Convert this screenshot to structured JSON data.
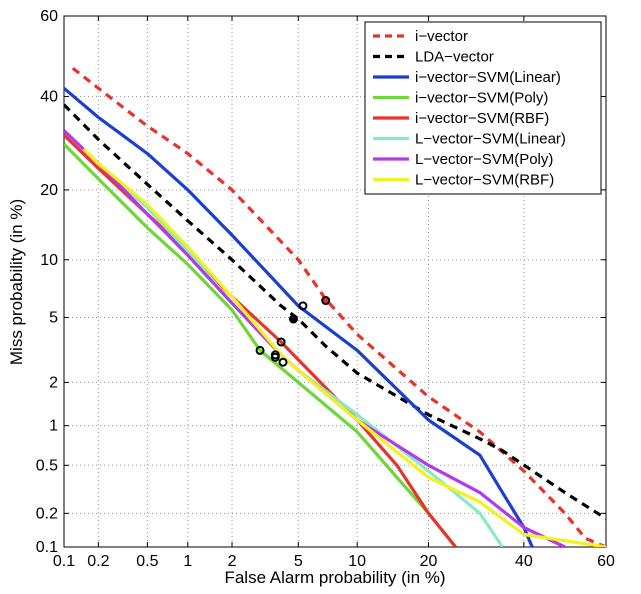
{
  "chart_data": {
    "type": "line",
    "title": "",
    "xlabel": "False Alarm probability (in %)",
    "ylabel": "Miss probability (in %)",
    "x_scale": "probit",
    "y_scale": "probit",
    "xlim": [
      0.1,
      60
    ],
    "ylim": [
      0.1,
      60
    ],
    "grid": true,
    "legend_position": "top-right",
    "x_ticks": [
      {
        "value": 0.1,
        "label": "0.1"
      },
      {
        "value": 0.2,
        "label": "0.2"
      },
      {
        "value": 0.5,
        "label": "0.5"
      },
      {
        "value": 1,
        "label": "1"
      },
      {
        "value": 2,
        "label": "2"
      },
      {
        "value": 5,
        "label": "5"
      },
      {
        "value": 10,
        "label": "10"
      },
      {
        "value": 20,
        "label": "20"
      },
      {
        "value": 40,
        "label": "40"
      },
      {
        "value": 60,
        "label": "60"
      }
    ],
    "y_ticks": [
      {
        "value": 0.1,
        "label": "0.1"
      },
      {
        "value": 0.2,
        "label": "0.2"
      },
      {
        "value": 0.5,
        "label": "0.5"
      },
      {
        "value": 1,
        "label": "1"
      },
      {
        "value": 2,
        "label": "2"
      },
      {
        "value": 5,
        "label": "5"
      },
      {
        "value": 10,
        "label": "10"
      },
      {
        "value": 20,
        "label": "20"
      },
      {
        "value": 40,
        "label": "40"
      },
      {
        "value": 60,
        "label": "60"
      }
    ],
    "series": [
      {
        "name": "i−vector",
        "color": "#e8332a",
        "dash": true,
        "points": [
          [
            0.12,
            47
          ],
          [
            0.2,
            42
          ],
          [
            0.5,
            33
          ],
          [
            1,
            27
          ],
          [
            2,
            20
          ],
          [
            5,
            10
          ],
          [
            7,
            6.3
          ],
          [
            10,
            4
          ],
          [
            20,
            1.6
          ],
          [
            30,
            0.9
          ],
          [
            40,
            0.45
          ],
          [
            50,
            0.2
          ],
          [
            55,
            0.12
          ],
          [
            60,
            0.1
          ]
        ],
        "min_dcf": [
          7.0,
          6.2
        ]
      },
      {
        "name": "LDA−vector",
        "color": "#000000",
        "dash": true,
        "points": [
          [
            0.1,
            38
          ],
          [
            0.2,
            30
          ],
          [
            0.5,
            21
          ],
          [
            1,
            15
          ],
          [
            2,
            10
          ],
          [
            4,
            5.8
          ],
          [
            5,
            4.9
          ],
          [
            7,
            3.4
          ],
          [
            10,
            2.3
          ],
          [
            20,
            1.2
          ],
          [
            30,
            0.8
          ],
          [
            35,
            0.65
          ],
          [
            50,
            0.3
          ],
          [
            60,
            0.18
          ]
        ],
        "min_dcf": [
          4.7,
          4.9
        ]
      },
      {
        "name": "i−vector−SVM(Linear)",
        "color": "#1a3fd1",
        "dash": false,
        "points": [
          [
            0.1,
            42
          ],
          [
            0.2,
            35
          ],
          [
            0.5,
            27
          ],
          [
            1,
            20
          ],
          [
            2,
            13
          ],
          [
            5,
            5.8
          ],
          [
            10,
            3.2
          ],
          [
            20,
            1.1
          ],
          [
            30,
            0.6
          ],
          [
            35,
            0.3
          ],
          [
            40,
            0.15
          ],
          [
            42,
            0.1
          ]
        ],
        "min_dcf": [
          5.3,
          5.8
        ]
      },
      {
        "name": "i−vector−SVM(Poly)",
        "color": "#6fd63a",
        "dash": false,
        "points": [
          [
            0.1,
            29
          ],
          [
            0.2,
            22
          ],
          [
            0.5,
            14
          ],
          [
            1,
            9.5
          ],
          [
            2,
            5.5
          ],
          [
            3,
            3.2
          ],
          [
            5,
            2
          ],
          [
            10,
            0.9
          ],
          [
            15,
            0.4
          ],
          [
            20,
            0.2
          ],
          [
            25,
            0.1
          ]
        ],
        "min_dcf": [
          3.0,
          3.2
        ]
      },
      {
        "name": "i−vector−SVM(RBF)",
        "color": "#e8332a",
        "dash": false,
        "points": [
          [
            0.1,
            31
          ],
          [
            0.2,
            24
          ],
          [
            0.5,
            16
          ],
          [
            1,
            11
          ],
          [
            2,
            6.5
          ],
          [
            4,
            3.6
          ],
          [
            5,
            2.8
          ],
          [
            10,
            1.1
          ],
          [
            15,
            0.5
          ],
          [
            20,
            0.2
          ],
          [
            25,
            0.1
          ]
        ],
        "min_dcf": [
          4.0,
          3.6
        ]
      },
      {
        "name": "L−vector−SVM(Linear)",
        "color": "#8ae8c8",
        "dash": false,
        "points": [
          [
            0.15,
            28
          ],
          [
            0.2,
            25
          ],
          [
            0.5,
            17
          ],
          [
            1,
            11
          ],
          [
            2,
            6
          ],
          [
            4,
            3
          ],
          [
            5,
            2.4
          ],
          [
            10,
            1.2
          ],
          [
            20,
            0.45
          ],
          [
            30,
            0.2
          ],
          [
            35,
            0.1
          ]
        ],
        "min_dcf": [
          3.7,
          3.0
        ]
      },
      {
        "name": "L−vector−SVM(Poly)",
        "color": "#b43ae8",
        "dash": false,
        "points": [
          [
            0.1,
            32
          ],
          [
            0.2,
            25
          ],
          [
            0.5,
            16
          ],
          [
            1,
            10.5
          ],
          [
            2,
            6
          ],
          [
            4,
            3
          ],
          [
            5,
            2.4
          ],
          [
            10,
            1.1
          ],
          [
            20,
            0.5
          ],
          [
            30,
            0.3
          ],
          [
            40,
            0.15
          ],
          [
            50,
            0.1
          ]
        ],
        "min_dcf": [
          3.7,
          2.9
        ]
      },
      {
        "name": "L−vector−SVM(RBF)",
        "color": "#f2f222",
        "dash": false,
        "points": [
          [
            0.15,
            28
          ],
          [
            0.2,
            25
          ],
          [
            0.5,
            17.5
          ],
          [
            1,
            11.5
          ],
          [
            2,
            6.5
          ],
          [
            4,
            3
          ],
          [
            5,
            2.4
          ],
          [
            10,
            1.1
          ],
          [
            20,
            0.4
          ],
          [
            30,
            0.25
          ],
          [
            40,
            0.13
          ],
          [
            60,
            0.1
          ]
        ],
        "min_dcf": [
          4.1,
          2.7
        ]
      }
    ]
  }
}
